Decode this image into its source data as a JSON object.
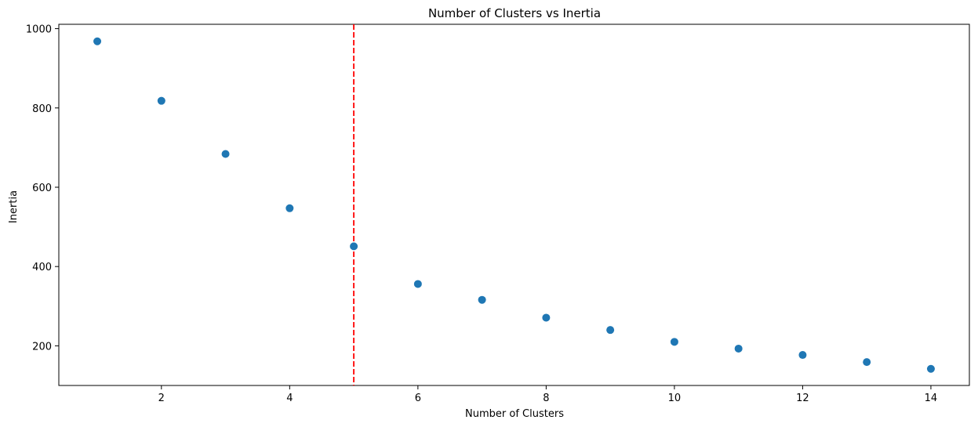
{
  "chart_data": {
    "type": "scatter",
    "title": "Number of Clusters vs Inertia",
    "xlabel": "Number of Clusters",
    "ylabel": "Inertia",
    "x": [
      1,
      2,
      3,
      4,
      5,
      6,
      7,
      8,
      9,
      10,
      11,
      12,
      13,
      14
    ],
    "y": [
      968,
      818,
      684,
      547,
      451,
      356,
      316,
      271,
      240,
      210,
      193,
      177,
      159,
      142
    ],
    "xlim": [
      0.4,
      14.6
    ],
    "ylim": [
      100,
      1011
    ],
    "xticks": [
      2,
      4,
      6,
      8,
      10,
      12,
      14
    ],
    "yticks": [
      200,
      400,
      600,
      800,
      1000
    ],
    "marker_color": "#1f77b4",
    "vline": {
      "x": 5,
      "color": "#ff0000",
      "style": "dashed"
    },
    "grid": false,
    "legend": "none"
  }
}
